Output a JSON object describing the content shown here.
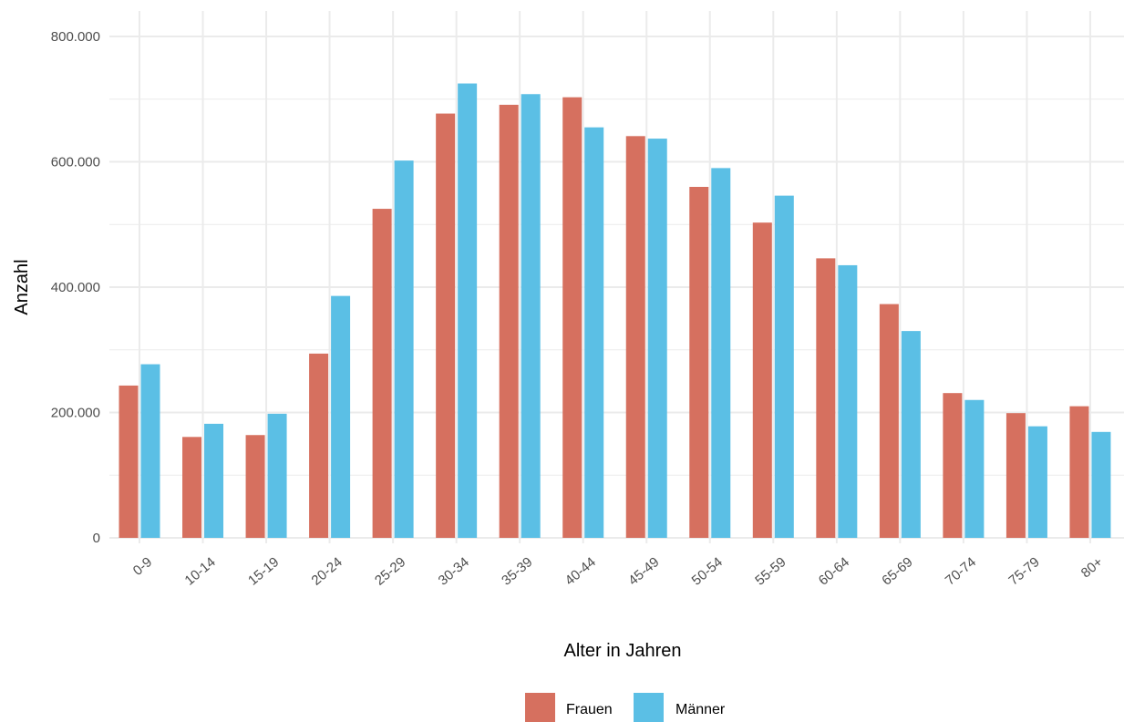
{
  "colors": {
    "series_frauen": "#D6705F",
    "series_maenner": "#5BBFE5",
    "grid": "#EBEBEB",
    "tick_text": "#4d4d4d",
    "axis_title_text": "#000000",
    "background": "#FFFFFF"
  },
  "chart_data": {
    "type": "bar",
    "title": "",
    "xlabel": "Alter in Jahren",
    "ylabel": "Anzahl",
    "ylim": [
      0,
      800000
    ],
    "y_ticks": [
      0,
      200000,
      400000,
      600000,
      800000
    ],
    "y_tick_labels": [
      "0",
      "200.000",
      "400.000",
      "600.000",
      "800.000"
    ],
    "grid": true,
    "legend_position": "bottom",
    "categories": [
      "0-9",
      "10-14",
      "15-19",
      "20-24",
      "25-29",
      "30-34",
      "35-39",
      "40-44",
      "45-49",
      "50-54",
      "55-59",
      "60-64",
      "65-69",
      "70-74",
      "75-79",
      "80+"
    ],
    "series": [
      {
        "name": "Frauen",
        "color": "#D6705F",
        "values": [
          243000,
          161000,
          164000,
          294000,
          525000,
          677000,
          691000,
          703000,
          641000,
          560000,
          503000,
          446000,
          373000,
          231000,
          199000,
          210000
        ]
      },
      {
        "name": "Männer",
        "color": "#5BBFE5",
        "values": [
          277000,
          182000,
          198000,
          386000,
          602000,
          725000,
          708000,
          655000,
          637000,
          590000,
          546000,
          435000,
          330000,
          220000,
          178000,
          169000
        ]
      }
    ]
  }
}
